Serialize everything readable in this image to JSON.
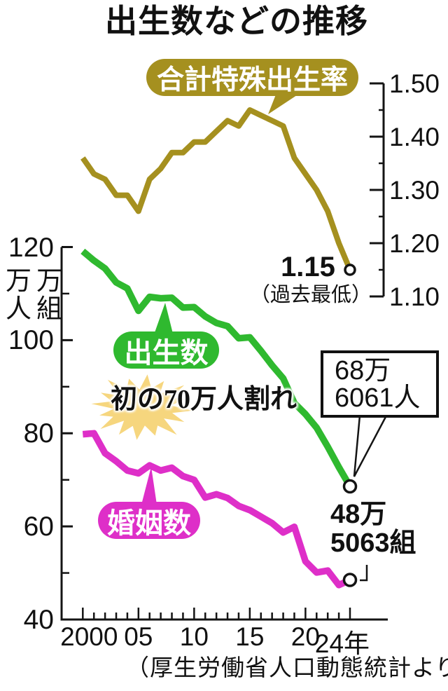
{
  "title": "出生数などの推移",
  "source_note": "（厚生労働省人口動態統計より）",
  "colors": {
    "births_green": "#2fb92f",
    "marriages_magenta": "#de2fc8",
    "tfr_gold": "#a5901f",
    "starburst_yellow": "#f6d67e",
    "axis_black": "#141414"
  },
  "badges": {
    "tfr": "合計特殊出生率",
    "births": "出生数",
    "marriages": "婚姻数"
  },
  "annotations": {
    "starburst_note": "初の70万人割れ",
    "tfr_latest_value": "1.15",
    "tfr_latest_note": "（過去最低）",
    "births_latest_line1": "68万",
    "births_latest_line2": "6061人",
    "marriages_latest_line1": "48万",
    "marriages_latest_line2": "5063組"
  },
  "axis_unit_left": {
    "line1": "万万",
    "line2": "人組"
  },
  "chart_data": {
    "type": "line",
    "title": "出生数などの推移",
    "grid": false,
    "legend_position": "inline-badges",
    "x": [
      2000,
      2001,
      2002,
      2003,
      2004,
      2005,
      2006,
      2007,
      2008,
      2009,
      2010,
      2011,
      2012,
      2013,
      2014,
      2015,
      2016,
      2017,
      2018,
      2019,
      2020,
      2021,
      2022,
      2023,
      2024
    ],
    "x_tick_labels": [
      {
        "label": "2000",
        "year": 2000
      },
      {
        "label": "05",
        "year": 2005
      },
      {
        "label": "10",
        "year": 2010
      },
      {
        "label": "15",
        "year": 2015
      },
      {
        "label": "20",
        "year": 2020
      },
      {
        "label": "24年",
        "year": 2024
      }
    ],
    "y_left": {
      "unit": "万人・万組",
      "range": [
        40,
        120
      ],
      "major_ticks": [
        120,
        100,
        80,
        60,
        40
      ],
      "minor_ticks": [
        110,
        90,
        70,
        50
      ]
    },
    "y_right": {
      "unit": "合計特殊出生率",
      "range": [
        1.1,
        1.5
      ],
      "major_ticks": [
        "1.50",
        "1.40",
        "1.30",
        "1.20",
        "1.10"
      ],
      "minor_ticks": [
        1.45,
        1.35,
        1.25,
        1.15
      ]
    },
    "series": [
      {
        "name": "合計特殊出生率",
        "axis": "right",
        "color_key": "tfr_gold",
        "values": [
          1.36,
          1.33,
          1.32,
          1.29,
          1.29,
          1.26,
          1.32,
          1.34,
          1.37,
          1.37,
          1.39,
          1.39,
          1.41,
          1.43,
          1.42,
          1.45,
          1.44,
          1.43,
          1.42,
          1.36,
          1.33,
          1.3,
          1.26,
          1.2,
          1.15
        ],
        "last_label": "1.15（過去最低）"
      },
      {
        "name": "出生数",
        "axis": "left",
        "unit": "万人",
        "color_key": "births_green",
        "values": [
          119.1,
          117.1,
          115.4,
          112.4,
          111.1,
          106.3,
          109.3,
          109.0,
          109.1,
          107.0,
          107.1,
          105.1,
          103.7,
          103.0,
          100.4,
          100.6,
          97.7,
          94.6,
          91.8,
          86.5,
          84.1,
          81.2,
          77.1,
          72.7,
          68.6
        ],
        "last_label": "68万6061人"
      },
      {
        "name": "婚姻数",
        "axis": "left",
        "unit": "万組",
        "color_key": "marriages_magenta",
        "values": [
          79.8,
          80.0,
          75.7,
          74.0,
          72.0,
          71.4,
          73.1,
          72.0,
          72.6,
          70.8,
          70.0,
          66.2,
          66.9,
          66.1,
          64.4,
          63.5,
          62.1,
          60.7,
          58.7,
          59.9,
          52.5,
          50.1,
          50.5,
          47.4,
          48.5
        ],
        "last_label": "48万5063組"
      }
    ]
  }
}
